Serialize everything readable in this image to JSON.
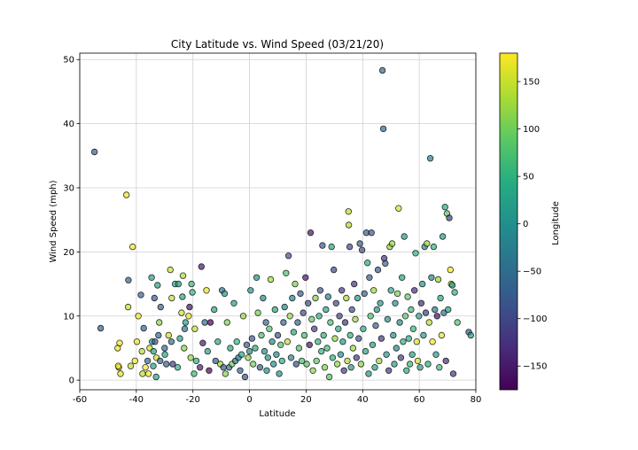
{
  "chart_data": {
    "type": "scatter",
    "title": "City Latitude vs. Wind Speed (03/21/20)",
    "xlabel": "Latitude",
    "ylabel": "Wind Speed (mph)",
    "xlim": [
      -60,
      80
    ],
    "ylim": [
      -1.5,
      51
    ],
    "xticks": [
      -60,
      -40,
      -20,
      0,
      20,
      40,
      60,
      80
    ],
    "yticks": [
      0,
      10,
      20,
      30,
      40,
      50
    ],
    "grid": true,
    "colorbar": {
      "label": "Longitude",
      "range": [
        -175,
        180
      ],
      "ticks": [
        -150,
        -100,
        -50,
        0,
        50,
        100,
        150
      ],
      "colormap": "viridis"
    },
    "marker": {
      "edgecolor": "#000000",
      "alpha": 0.7
    },
    "points_note": "Cities plotted as [latitude, wind speed (mph), longitude]",
    "points": [
      [
        -54.8,
        35.6,
        -68.3
      ],
      [
        -52.6,
        8.1,
        -68.0
      ],
      [
        -46.6,
        5.0,
        168.4
      ],
      [
        -46.2,
        2.0,
        168.9
      ],
      [
        -45.9,
        5.8,
        170.5
      ],
      [
        -45.6,
        1.0,
        167.7
      ],
      [
        -46.4,
        2.2,
        168.3
      ],
      [
        -43.5,
        28.9,
        172.6
      ],
      [
        -42.9,
        11.4,
        147.3
      ],
      [
        -42.8,
        15.6,
        -65.0
      ],
      [
        -42.0,
        2.2,
        146.6
      ],
      [
        -41.3,
        20.8,
        174.8
      ],
      [
        -40.5,
        3.0,
        175.6
      ],
      [
        -39.8,
        6.0,
        170.1
      ],
      [
        -39.3,
        10.0,
        174.1
      ],
      [
        -38.4,
        13.3,
        -63.6
      ],
      [
        -38.0,
        4.5,
        140.8
      ],
      [
        -37.8,
        1.0,
        144.9
      ],
      [
        -37.4,
        8.1,
        -57.0
      ],
      [
        -36.8,
        2.0,
        174.8
      ],
      [
        -36.0,
        3.0,
        -57.5
      ],
      [
        -35.7,
        1.0,
        174.3
      ],
      [
        -35.3,
        5.0,
        149.1
      ],
      [
        -34.6,
        16.0,
        20.0
      ],
      [
        -34.4,
        6.0,
        19.2
      ],
      [
        -34.0,
        2.2,
        22.5
      ],
      [
        -33.9,
        4.5,
        18.4
      ],
      [
        -33.6,
        12.8,
        -70.6
      ],
      [
        -33.4,
        6.0,
        -70.6
      ],
      [
        -33.0,
        0.5,
        27.9
      ],
      [
        -32.9,
        3.5,
        151.7
      ],
      [
        -32.5,
        14.8,
        25.7
      ],
      [
        -32.2,
        7.0,
        -64.5
      ],
      [
        -31.9,
        9.0,
        115.9
      ],
      [
        -31.6,
        3.0,
        -60.7
      ],
      [
        -31.4,
        11.4,
        -64.2
      ],
      [
        -30.0,
        5.0,
        -51.2
      ],
      [
        -29.9,
        4.0,
        31.0
      ],
      [
        -29.4,
        2.5,
        -66.9
      ],
      [
        -28.6,
        7.0,
        153.5
      ],
      [
        -28.0,
        17.2,
        153.4
      ],
      [
        -27.6,
        6.0,
        -48.5
      ],
      [
        -27.5,
        12.8,
        153.0
      ],
      [
        -27.1,
        2.5,
        -109.4
      ],
      [
        -26.3,
        15.0,
        28.0
      ],
      [
        -25.4,
        2.0,
        49.0
      ],
      [
        -25.1,
        15.0,
        25.5
      ],
      [
        -24.6,
        6.5,
        25.9
      ],
      [
        -24.0,
        10.5,
        150.0
      ],
      [
        -23.7,
        13.0,
        27.9
      ],
      [
        -23.5,
        16.3,
        133.9
      ],
      [
        -23.1,
        5.0,
        113.8
      ],
      [
        -22.9,
        8.0,
        -43.2
      ],
      [
        -22.6,
        9.0,
        17.1
      ],
      [
        -21.5,
        10.0,
        165.5
      ],
      [
        -21.2,
        11.4,
        -159.8
      ],
      [
        -20.8,
        3.5,
        117.2
      ],
      [
        -20.5,
        15.0,
        57.5
      ],
      [
        -20.2,
        13.7,
        57.5
      ],
      [
        -19.6,
        1.0,
        63.4
      ],
      [
        -19.3,
        8.0,
        146.8
      ],
      [
        -18.8,
        3.0,
        47.5
      ],
      [
        -17.5,
        2.0,
        -149.6
      ],
      [
        -17.0,
        17.7,
        -149.6
      ],
      [
        -16.5,
        5.8,
        -151.7
      ],
      [
        -15.8,
        9.0,
        -47.9
      ],
      [
        -15.2,
        14.0,
        167.1
      ],
      [
        -14.8,
        4.5,
        28.6
      ],
      [
        -14.3,
        1.5,
        -170.7
      ],
      [
        -13.8,
        9.0,
        -172.1
      ],
      [
        -12.5,
        11.0,
        34.0
      ],
      [
        -12.0,
        3.0,
        -77.0
      ],
      [
        -11.2,
        6.0,
        43.2
      ],
      [
        -10.3,
        2.5,
        123.6
      ],
      [
        -9.7,
        14.0,
        -35.7
      ],
      [
        -9.2,
        2.0,
        -75.0
      ],
      [
        -8.8,
        13.5,
        13.2
      ],
      [
        -8.5,
        1.0,
        115.3
      ],
      [
        -7.9,
        9.0,
        110.5
      ],
      [
        -7.2,
        2.0,
        -48.2
      ],
      [
        -6.8,
        5.0,
        39.3
      ],
      [
        -6.2,
        2.5,
        106.8
      ],
      [
        -5.5,
        12.0,
        22.4
      ],
      [
        -5.0,
        3.0,
        -39.0
      ],
      [
        -4.5,
        6.0,
        55.5
      ],
      [
        -3.9,
        3.5,
        -38.5
      ],
      [
        -3.3,
        1.5,
        -60.0
      ],
      [
        -2.8,
        4.0,
        36.9
      ],
      [
        -2.2,
        10.0,
        120.0
      ],
      [
        -1.6,
        0.5,
        -78.0
      ],
      [
        -1.0,
        5.5,
        -80.7
      ],
      [
        -0.5,
        3.5,
        117.1
      ],
      [
        0.0,
        4.5,
        6.7
      ],
      [
        0.4,
        14.0,
        9.4
      ],
      [
        0.9,
        6.5,
        -78.0
      ],
      [
        1.3,
        2.5,
        103.8
      ],
      [
        2.0,
        5.0,
        45.3
      ],
      [
        2.5,
        16.0,
        1.8
      ],
      [
        3.0,
        10.5,
        101.4
      ],
      [
        3.7,
        2.0,
        -76.5
      ],
      [
        4.2,
        7.0,
        73.5
      ],
      [
        4.8,
        12.8,
        -6.6
      ],
      [
        5.3,
        4.5,
        -4.0
      ],
      [
        5.8,
        9.0,
        -55.2
      ],
      [
        6.1,
        1.5,
        1.2
      ],
      [
        6.5,
        3.5,
        3.4
      ],
      [
        7.0,
        8.0,
        79.8
      ],
      [
        7.5,
        15.7,
        134.6
      ],
      [
        8.0,
        6.0,
        -13.2
      ],
      [
        8.5,
        2.5,
        4.5
      ],
      [
        9.0,
        11.0,
        38.7
      ],
      [
        9.5,
        4.0,
        -13.7
      ],
      [
        10.0,
        7.0,
        -84.0
      ],
      [
        10.5,
        1.0,
        7.4
      ],
      [
        11.0,
        5.5,
        76.9
      ],
      [
        11.5,
        3.0,
        43.1
      ],
      [
        12.0,
        9.0,
        -61.7
      ],
      [
        12.4,
        11.4,
        -16.3
      ],
      [
        12.9,
        16.7,
        74.8
      ],
      [
        13.4,
        6.0,
        144.8
      ],
      [
        13.8,
        19.4,
        -89.2
      ],
      [
        14.3,
        10.0,
        121.0
      ],
      [
        14.7,
        3.5,
        -17.4
      ],
      [
        15.1,
        12.8,
        -23.5
      ],
      [
        15.6,
        7.5,
        32.5
      ],
      [
        16.1,
        15.0,
        108.2
      ],
      [
        16.5,
        2.5,
        -88.8
      ],
      [
        17.0,
        9.0,
        -61.8
      ],
      [
        17.5,
        5.0,
        78.4
      ],
      [
        18.0,
        13.5,
        -76.8
      ],
      [
        18.5,
        3.0,
        73.8
      ],
      [
        19.0,
        10.5,
        -99.1
      ],
      [
        19.4,
        7.0,
        72.9
      ],
      [
        19.8,
        16.0,
        -155.1
      ],
      [
        20.2,
        2.5,
        85.8
      ],
      [
        20.7,
        12.0,
        -103.3
      ],
      [
        21.2,
        5.5,
        -157.8
      ],
      [
        21.6,
        23.0,
        -158.0
      ],
      [
        22.0,
        9.5,
        88.3
      ],
      [
        22.4,
        1.5,
        114.1
      ],
      [
        22.9,
        8.0,
        -109.9
      ],
      [
        23.3,
        12.8,
        113.3
      ],
      [
        23.7,
        3.0,
        90.4
      ],
      [
        24.2,
        6.0,
        55.2
      ],
      [
        24.6,
        10.0,
        46.7
      ],
      [
        25.0,
        14.0,
        -77.3
      ],
      [
        25.4,
        4.5,
        51.5
      ],
      [
        25.8,
        21.0,
        -80.2
      ],
      [
        26.2,
        7.0,
        50.5
      ],
      [
        26.6,
        2.0,
        106.7
      ],
      [
        27.0,
        11.0,
        33.8
      ],
      [
        27.4,
        5.0,
        68.4
      ],
      [
        27.8,
        13.0,
        -15.4
      ],
      [
        28.2,
        0.5,
        84.0
      ],
      [
        28.6,
        9.0,
        77.2
      ],
      [
        29.0,
        20.8,
        31.2
      ],
      [
        29.4,
        3.5,
        48.0
      ],
      [
        29.8,
        17.2,
        -95.4
      ],
      [
        30.2,
        6.5,
        120.2
      ],
      [
        30.6,
        12.0,
        -97.7
      ],
      [
        31.0,
        2.5,
        121.5
      ],
      [
        31.4,
        8.0,
        35.2
      ],
      [
        31.8,
        10.0,
        -106.4
      ],
      [
        32.2,
        4.0,
        -7.9
      ],
      [
        32.6,
        14.0,
        -117.1
      ],
      [
        33.0,
        6.0,
        13.2
      ],
      [
        33.4,
        1.5,
        -111.9
      ],
      [
        33.8,
        9.0,
        -118.2
      ],
      [
        34.2,
        12.8,
        130.0
      ],
      [
        34.6,
        3.0,
        135.5
      ],
      [
        35.0,
        26.3,
        139.7
      ],
      [
        35.1,
        24.2,
        136.9
      ],
      [
        35.4,
        20.8,
        -97.5
      ],
      [
        35.6,
        7.0,
        51.4
      ],
      [
        35.9,
        2.0,
        14.5
      ],
      [
        36.2,
        11.0,
        -86.8
      ],
      [
        36.6,
        5.0,
        127.0
      ],
      [
        37.0,
        15.0,
        -122.0
      ],
      [
        37.4,
        9.5,
        127.0
      ],
      [
        37.8,
        3.5,
        -122.4
      ],
      [
        38.2,
        12.8,
        15.6
      ],
      [
        38.6,
        6.5,
        -90.2
      ],
      [
        39.0,
        21.3,
        -76.6
      ],
      [
        39.4,
        2.5,
        116.4
      ],
      [
        39.8,
        20.3,
        -89.6
      ],
      [
        40.2,
        8.0,
        44.5
      ],
      [
        40.6,
        13.5,
        -74.0
      ],
      [
        41.0,
        4.5,
        29.0
      ],
      [
        41.3,
        23.0,
        -72.9
      ],
      [
        41.7,
        18.3,
        44.8
      ],
      [
        42.1,
        1.0,
        12.5
      ],
      [
        42.4,
        16.0,
        -71.0
      ],
      [
        42.8,
        10.0,
        74.6
      ],
      [
        43.1,
        23.0,
        -79.4
      ],
      [
        43.5,
        5.5,
        16.4
      ],
      [
        43.9,
        14.0,
        125.3
      ],
      [
        44.3,
        2.0,
        26.1
      ],
      [
        44.6,
        8.5,
        -63.6
      ],
      [
        45.0,
        11.0,
        7.7
      ],
      [
        45.4,
        17.2,
        -75.7
      ],
      [
        45.8,
        3.0,
        126.6
      ],
      [
        46.2,
        12.0,
        6.1
      ],
      [
        46.6,
        6.5,
        -120.5
      ],
      [
        47.0,
        48.3,
        -52.7
      ],
      [
        47.3,
        39.2,
        -52.8
      ],
      [
        47.6,
        19.0,
        -122.3
      ],
      [
        48.0,
        18.2,
        -61.8
      ],
      [
        48.4,
        4.0,
        10.9
      ],
      [
        48.8,
        9.5,
        2.3
      ],
      [
        49.2,
        1.5,
        -123.1
      ],
      [
        49.6,
        20.8,
        117.3
      ],
      [
        50.0,
        14.0,
        36.2
      ],
      [
        50.4,
        21.3,
        125.6
      ],
      [
        50.8,
        7.0,
        4.4
      ],
      [
        51.2,
        2.5,
        22.6
      ],
      [
        51.5,
        12.0,
        -0.1
      ],
      [
        51.9,
        5.0,
        -8.5
      ],
      [
        52.3,
        13.5,
        104.3
      ],
      [
        52.7,
        26.8,
        158.7
      ],
      [
        53.1,
        9.0,
        -1.5
      ],
      [
        53.5,
        3.5,
        -113.5
      ],
      [
        53.9,
        16.0,
        27.6
      ],
      [
        54.3,
        6.0,
        48.4
      ],
      [
        54.7,
        22.4,
        20.5
      ],
      [
        55.1,
        10.0,
        82.9
      ],
      [
        55.5,
        1.5,
        37.6
      ],
      [
        55.9,
        13.0,
        92.9
      ],
      [
        56.3,
        6.5,
        44.0
      ],
      [
        56.7,
        2.5,
        60.6
      ],
      [
        57.1,
        11.0,
        65.5
      ],
      [
        57.5,
        4.0,
        24.0
      ],
      [
        57.9,
        8.0,
        56.2
      ],
      [
        58.3,
        14.0,
        -134.4
      ],
      [
        58.7,
        19.8,
        48.7
      ],
      [
        59.1,
        6.0,
        159.1
      ],
      [
        59.5,
        3.0,
        151.3
      ],
      [
        59.9,
        10.0,
        30.3
      ],
      [
        60.3,
        2.0,
        25.0
      ],
      [
        60.7,
        12.0,
        -135.1
      ],
      [
        61.1,
        15.0,
        10.7
      ],
      [
        61.5,
        7.0,
        21.5
      ],
      [
        61.9,
        20.8,
        -6.8
      ],
      [
        62.3,
        10.5,
        -114.4
      ],
      [
        62.7,
        21.3,
        129.7
      ],
      [
        63.1,
        2.5,
        47.7
      ],
      [
        63.5,
        9.0,
        143.2
      ],
      [
        63.9,
        34.6,
        -22.6
      ],
      [
        64.3,
        16.0,
        -21.9
      ],
      [
        64.7,
        6.0,
        177.5
      ],
      [
        65.1,
        20.8,
        57.2
      ],
      [
        65.5,
        11.0,
        -37.6
      ],
      [
        65.9,
        4.0,
        12.5
      ],
      [
        66.3,
        10.0,
        -161.8
      ],
      [
        66.7,
        15.7,
        123.4
      ],
      [
        67.1,
        2.0,
        64.0
      ],
      [
        67.5,
        12.8,
        33.1
      ],
      [
        67.9,
        7.0,
        166.4
      ],
      [
        68.3,
        22.4,
        18.7
      ],
      [
        68.7,
        10.5,
        -52.9
      ],
      [
        69.1,
        27.0,
        33.0
      ],
      [
        69.4,
        3.0,
        -133.0
      ],
      [
        69.8,
        26.0,
        88.2
      ],
      [
        70.2,
        11.0,
        19.2
      ],
      [
        70.6,
        25.3,
        -109.0
      ],
      [
        71.0,
        17.2,
        179.3
      ],
      [
        71.3,
        15.0,
        128.8
      ],
      [
        71.7,
        14.8,
        25.8
      ],
      [
        72.0,
        1.0,
        -124.0
      ],
      [
        72.5,
        13.7,
        53.7
      ],
      [
        73.5,
        9.0,
        80.5
      ],
      [
        77.5,
        7.5,
        -69.2
      ],
      [
        78.2,
        7.0,
        15.6
      ]
    ]
  }
}
